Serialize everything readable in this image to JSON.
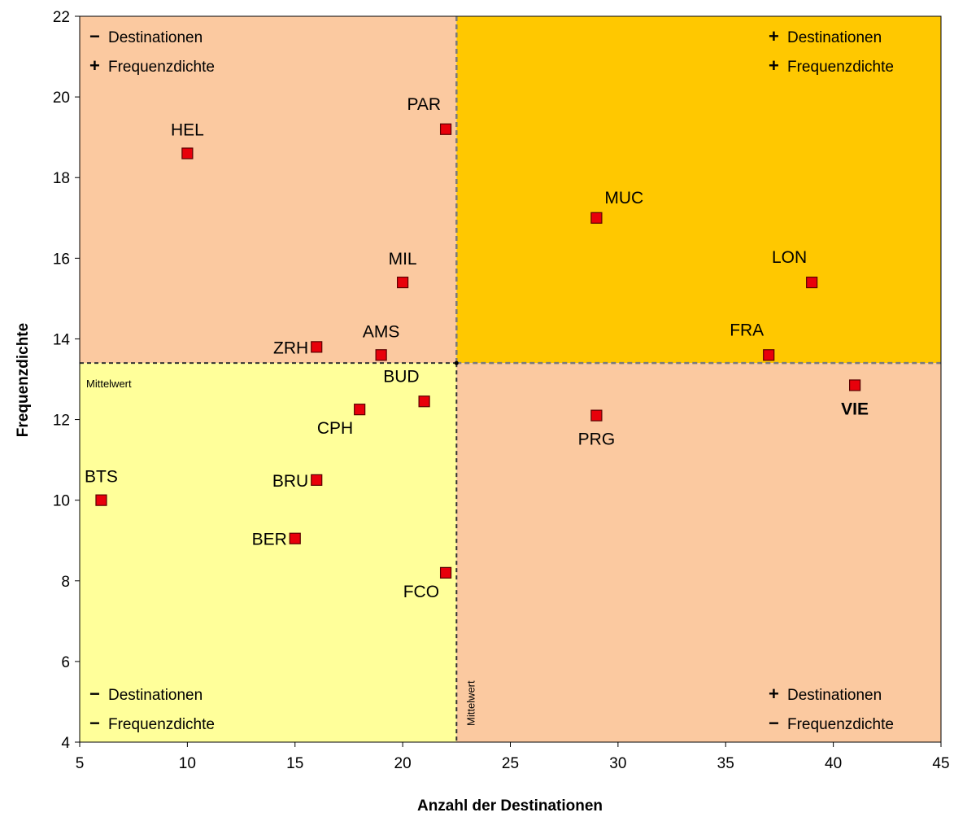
{
  "chart_data": {
    "type": "scatter",
    "xlabel": "Anzahl der Destinationen",
    "ylabel": "Frequenzdichte",
    "xlim": [
      5,
      45
    ],
    "ylim": [
      4,
      22
    ],
    "xticks": [
      5,
      10,
      15,
      20,
      25,
      30,
      35,
      40,
      45
    ],
    "yticks": [
      4,
      6,
      8,
      10,
      12,
      14,
      16,
      18,
      20,
      22
    ],
    "grid": false,
    "mean": {
      "x": 22.5,
      "y": 13.4,
      "x_label": "Mittelwert",
      "y_label": "Mittelwert"
    },
    "quadrant_colors": {
      "top_left": "#FBC9A0",
      "top_right": "#FFC800",
      "bottom_left": "#FFFF9A",
      "bottom_right": "#FBC9A0"
    },
    "marker_color": "#E8000B",
    "points": [
      {
        "label": "HEL",
        "x": 10,
        "y": 18.6,
        "label_pos": "above"
      },
      {
        "label": "PAR",
        "x": 22,
        "y": 19.2,
        "label_pos": "above-left"
      },
      {
        "label": "MUC",
        "x": 29,
        "y": 17.0,
        "label_pos": "above-right"
      },
      {
        "label": "MIL",
        "x": 20,
        "y": 15.4,
        "label_pos": "above"
      },
      {
        "label": "LON",
        "x": 39,
        "y": 15.4,
        "label_pos": "above-left"
      },
      {
        "label": "ZRH",
        "x": 16,
        "y": 13.8,
        "label_pos": "left"
      },
      {
        "label": "AMS",
        "x": 19,
        "y": 13.6,
        "label_pos": "above"
      },
      {
        "label": "FRA",
        "x": 37,
        "y": 13.6,
        "label_pos": "above-left"
      },
      {
        "label": "VIE",
        "x": 41,
        "y": 12.85,
        "label_pos": "below",
        "bold": true
      },
      {
        "label": "BUD",
        "x": 21,
        "y": 12.45,
        "label_pos": "above-left"
      },
      {
        "label": "CPH",
        "x": 18,
        "y": 12.25,
        "label_pos": "below-left"
      },
      {
        "label": "PRG",
        "x": 29,
        "y": 12.1,
        "label_pos": "below"
      },
      {
        "label": "BTS",
        "x": 6,
        "y": 10.0,
        "label_pos": "above"
      },
      {
        "label": "BRU",
        "x": 16,
        "y": 10.5,
        "label_pos": "left"
      },
      {
        "label": "BER",
        "x": 15,
        "y": 9.05,
        "label_pos": "left"
      },
      {
        "label": "FCO",
        "x": 22,
        "y": 8.2,
        "label_pos": "below-left"
      }
    ],
    "quadrant_notes": {
      "top_left": [
        {
          "sign": "−",
          "text": "Destinationen"
        },
        {
          "sign": "+",
          "text": "Frequenzdichte"
        }
      ],
      "top_right": [
        {
          "sign": "+",
          "text": "Destinationen"
        },
        {
          "sign": "+",
          "text": "Frequenzdichte"
        }
      ],
      "bottom_left": [
        {
          "sign": "−",
          "text": "Destinationen"
        },
        {
          "sign": "−",
          "text": "Frequenzdichte"
        }
      ],
      "bottom_right": [
        {
          "sign": "+",
          "text": "Destinationen"
        },
        {
          "sign": "−",
          "text": "Frequenzdichte"
        }
      ]
    }
  }
}
